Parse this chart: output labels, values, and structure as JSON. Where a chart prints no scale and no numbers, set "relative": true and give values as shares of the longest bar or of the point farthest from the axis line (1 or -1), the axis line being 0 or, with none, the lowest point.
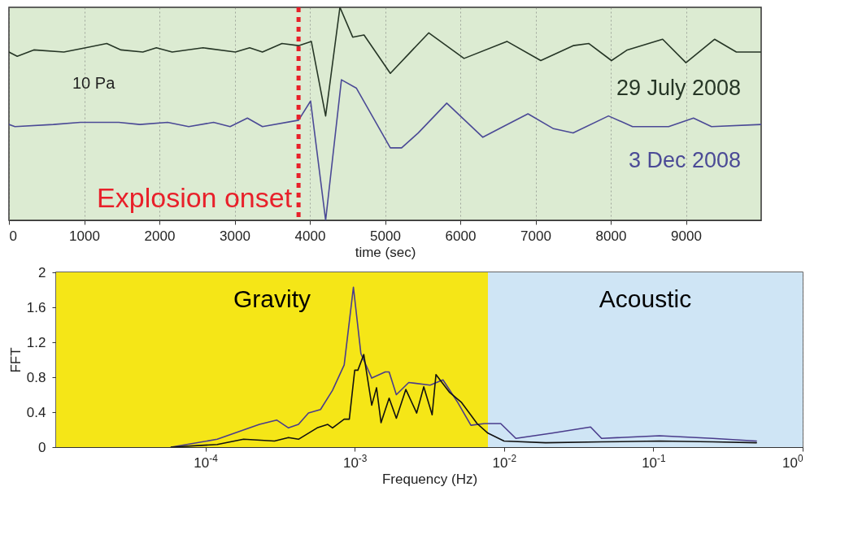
{
  "chart_data": [
    {
      "type": "line",
      "relative": true,
      "xlabel": "time (sec)",
      "xlim": [
        0,
        10000
      ],
      "xticks": [
        0,
        1000,
        2000,
        3000,
        4000,
        5000,
        6000,
        7000,
        8000,
        9000
      ],
      "grid": "x",
      "line_style": "solid",
      "annotations": [
        "10 Pa"
      ],
      "ref_lines": [
        {
          "axis": "x",
          "value": 3850,
          "label": "Explosion onset",
          "color": "#e8202a",
          "line_style": "dotted"
        }
      ],
      "series": [
        {
          "name": "29 July 2008",
          "color": "#263626",
          "x": [
            0,
            110,
            330,
            730,
            1020,
            1300,
            1490,
            1780,
            1960,
            2170,
            2580,
            3010,
            3200,
            3370,
            3630,
            3850,
            4020,
            4210,
            4400,
            4570,
            4720,
            5070,
            5580,
            6050,
            6620,
            7070,
            7500,
            7710,
            8010,
            8220,
            8690,
            9000,
            9380,
            9670,
            10000
          ],
          "values": [
            0.79,
            0.77,
            0.8,
            0.79,
            0.81,
            0.83,
            0.8,
            0.79,
            0.81,
            0.79,
            0.81,
            0.79,
            0.81,
            0.79,
            0.83,
            0.82,
            0.84,
            0.49,
            1,
            0.86,
            0.87,
            0.69,
            0.88,
            0.76,
            0.84,
            0.75,
            0.82,
            0.83,
            0.75,
            0.8,
            0.85,
            0.74,
            0.85,
            0.79,
            0.79
          ]
        },
        {
          "name": "3 Dec 2008",
          "color": "#4b4a96",
          "x": [
            0,
            80,
            590,
            950,
            1460,
            1740,
            2110,
            2390,
            2720,
            2940,
            3170,
            3370,
            3850,
            4010,
            4210,
            4420,
            4620,
            5070,
            5220,
            5440,
            5820,
            6300,
            6570,
            6900,
            7240,
            7500,
            7970,
            8290,
            8770,
            9100,
            9340,
            10000
          ],
          "values": [
            0.45,
            0.44,
            0.45,
            0.46,
            0.46,
            0.45,
            0.46,
            0.44,
            0.46,
            0.44,
            0.48,
            0.44,
            0.47,
            0.56,
            0,
            0.66,
            0.62,
            0.34,
            0.34,
            0.41,
            0.55,
            0.39,
            0.44,
            0.5,
            0.43,
            0.41,
            0.49,
            0.44,
            0.44,
            0.48,
            0.44,
            0.45
          ]
        }
      ]
    },
    {
      "type": "line",
      "xlabel": "Frequency (Hz)",
      "ylabel": "FFT",
      "log": "x",
      "xlim": [
        1e-05,
        1
      ],
      "xticks": [
        {
          "value": 0.0001,
          "label": "10$^{-4}$"
        },
        {
          "value": 0.001,
          "label": "10$^{-3}$"
        },
        {
          "value": 0.01,
          "label": "10$^{-2}$"
        },
        {
          "value": 0.1,
          "label": "10$^{-1}$"
        },
        {
          "value": 1,
          "label": "10$^{0}$"
        }
      ],
      "ylim": [
        0,
        2
      ],
      "yticks": [
        0,
        0.4,
        0.8,
        1.2,
        1.6,
        2
      ],
      "grid": true,
      "line_style": "solid",
      "bands": [
        {
          "axis": "x",
          "from": 1e-05,
          "to": 0.0078,
          "label": "Gravity",
          "color": "#f5e617"
        },
        {
          "axis": "x",
          "from": 0.0078,
          "to": 1,
          "label": "Acoustic",
          "color": "#cfe5f5"
        }
      ],
      "series": [
        {
          "color": "#4a3c8c",
          "x": [
            5.9e-05,
            0.00012,
            0.00023,
            0.0003,
            0.00036,
            0.00042,
            0.00049,
            0.00059,
            0.00071,
            0.00085,
            0.00098,
            0.0011,
            0.0013,
            0.0016,
            0.0017,
            0.0019,
            0.0023,
            0.0032,
            0.0039,
            0.0049,
            0.006,
            0.0074,
            0.0095,
            0.012,
            0.021,
            0.038,
            0.045,
            0.11,
            0.25,
            0.49
          ],
          "values": [
            0,
            0.09,
            0.26,
            0.31,
            0.22,
            0.26,
            0.39,
            0.43,
            0.65,
            0.94,
            1.83,
            1.07,
            0.79,
            0.86,
            0.86,
            0.6,
            0.74,
            0.71,
            0.77,
            0.51,
            0.25,
            0.27,
            0.27,
            0.1,
            0.16,
            0.23,
            0.1,
            0.13,
            0.1,
            0.07
          ]
        },
        {
          "color": "#111111",
          "x": [
            5.9e-05,
            0.00012,
            0.00018,
            0.00029,
            0.00036,
            0.00042,
            0.00056,
            0.00066,
            0.00071,
            0.00085,
            0.00092,
            0.001,
            0.00105,
            0.00115,
            0.0013,
            0.0014,
            0.0015,
            0.0017,
            0.0019,
            0.0022,
            0.0026,
            0.0029,
            0.0033,
            0.0035,
            0.0043,
            0.0052,
            0.0066,
            0.0078,
            0.01,
            0.019,
            0.045,
            0.11,
            0.25,
            0.49
          ],
          "values": [
            0,
            0.03,
            0.09,
            0.07,
            0.11,
            0.09,
            0.22,
            0.26,
            0.22,
            0.32,
            0.32,
            0.88,
            0.88,
            1.06,
            0.48,
            0.68,
            0.28,
            0.56,
            0.33,
            0.66,
            0.39,
            0.69,
            0.37,
            0.83,
            0.63,
            0.51,
            0.27,
            0.16,
            0.07,
            0.05,
            0.06,
            0.07,
            0.06,
            0.05
          ]
        }
      ]
    }
  ]
}
